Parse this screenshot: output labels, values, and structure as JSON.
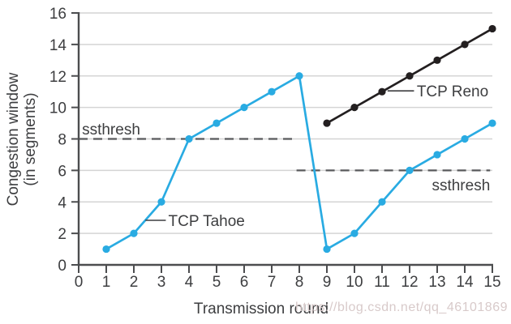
{
  "figure": {
    "xlabel": "Transmission round",
    "ylabel_line1": "Congestion window",
    "ylabel_line2": "(in segments)"
  },
  "watermark": "https://blog.csdn.net/qq_46101869",
  "chart_data": {
    "type": "line",
    "title": "",
    "xlabel": "Transmission round",
    "ylabel": "Congestion window (in segments)",
    "xlim": [
      0,
      15
    ],
    "ylim": [
      0,
      16
    ],
    "xticks": [
      0,
      1,
      2,
      3,
      4,
      5,
      6,
      7,
      8,
      9,
      10,
      11,
      12,
      13,
      14,
      15
    ],
    "yticks": [
      0,
      2,
      4,
      6,
      8,
      10,
      12,
      14,
      16
    ],
    "grid": "horizontal-light",
    "legend": "inline-annotations",
    "style": {
      "grid_color": "#d4d4d4",
      "axis_color": "#4c4d4f",
      "dash_color": "#58595b",
      "text_color": "#3d3e40",
      "background": "#ffffff",
      "font_size": 19
    },
    "series": [
      {
        "name": "TCP Tahoe",
        "color": "#29abe2",
        "marker": "circle",
        "x": [
          1,
          2,
          3,
          4,
          5,
          6,
          7,
          8,
          9,
          10,
          11,
          12,
          13,
          14,
          15
        ],
        "y": [
          1,
          2,
          4,
          8,
          9,
          10,
          11,
          12,
          1,
          2,
          4,
          6,
          7,
          8,
          9
        ]
      },
      {
        "name": "TCP Reno",
        "color": "#231f20",
        "marker": "circle",
        "x": [
          9,
          10,
          11,
          12,
          13,
          14,
          15
        ],
        "y": [
          9,
          10,
          11,
          12,
          13,
          14,
          15
        ]
      }
    ],
    "thresholds": [
      {
        "label": "ssthresh",
        "y": 8,
        "x_from": 0,
        "x_to": 7.82,
        "label_x": 0.12,
        "label_y": 8.28,
        "label_anchor": "start"
      },
      {
        "label": "ssthresh",
        "y": 6,
        "x_from": 7.9,
        "x_to": 14.92,
        "label_x": 14.92,
        "label_y": 4.73,
        "label_anchor": "end"
      }
    ],
    "annotations": [
      {
        "text": "TCP Tahoe",
        "x": 3.25,
        "y": 2.83,
        "leader": {
          "x1": 2.42,
          "y1": 2.83,
          "x2": 3.16,
          "y2": 2.83
        }
      },
      {
        "text": "TCP Reno",
        "x": 12.26,
        "y": 11.05,
        "leader": {
          "x1": 11.2,
          "y1": 11.05,
          "x2": 12.16,
          "y2": 11.05
        }
      }
    ]
  }
}
